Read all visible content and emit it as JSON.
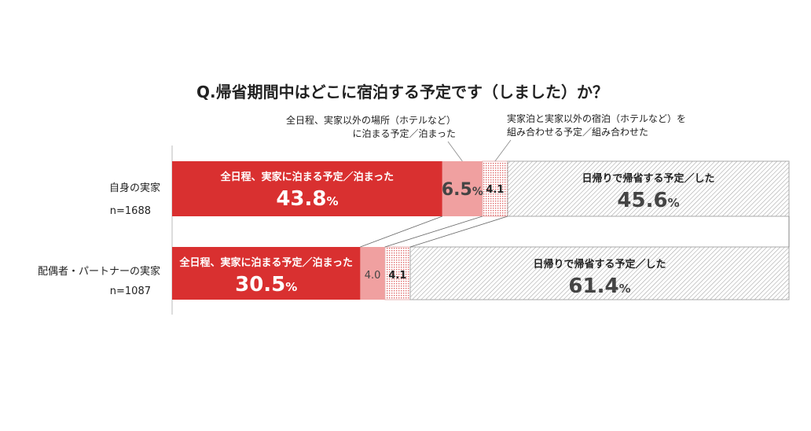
{
  "chart_data": {
    "type": "stacked-bar-horizontal",
    "title": "Q.帰省期間中はどこに宿泊する予定です（しました）か？",
    "unit": "%",
    "categories": [
      {
        "label": "自身の実家",
        "n": "n=1688"
      },
      {
        "label": "配偶者・パートナーの実家",
        "n": "n=1087"
      }
    ],
    "series": [
      {
        "name": "全日程、実家に泊まる予定／泊まった",
        "values": [
          43.8,
          30.5
        ],
        "value_labels": [
          [
            "43.8",
            "%"
          ],
          [
            "30.5",
            "%"
          ]
        ],
        "color": "#d93030",
        "pattern": "solid"
      },
      {
        "name": "全日程、実家以外の場所（ホテルなど）に泊まる予定／泊まった",
        "values": [
          6.5,
          4.0
        ],
        "value_labels": [
          [
            "6.5",
            "%"
          ],
          [
            "4.0",
            ""
          ]
        ],
        "color": "#f0a0a0",
        "pattern": "solid"
      },
      {
        "name": "実家泊と実家以外の宿泊（ホテルなど）を組み合わせる予定／組み合わせた",
        "values": [
          4.1,
          4.1
        ],
        "value_labels": [
          [
            "4.1",
            ""
          ],
          [
            "4.1",
            ""
          ]
        ],
        "color": "#e88a8a",
        "pattern": "dots"
      },
      {
        "name": "日帰りで帰省する予定／した",
        "values": [
          45.6,
          61.4
        ],
        "value_labels": [
          [
            "45.6",
            "%"
          ],
          [
            "61.4",
            "%"
          ]
        ],
        "color": "#b0b0b0",
        "pattern": "hatch"
      }
    ],
    "callouts": [
      {
        "lines": [
          "全日程、実家以外の場所（ホテルなど）",
          "に泊まる予定／泊まった"
        ],
        "series": 1
      },
      {
        "lines": [
          "実家泊と実家以外の宿泊（ホテルなど）を",
          "組み合わせる予定／組み合わせた"
        ],
        "series": 2
      }
    ],
    "xlim": [
      0,
      100
    ],
    "legend": "none",
    "grid": false
  }
}
